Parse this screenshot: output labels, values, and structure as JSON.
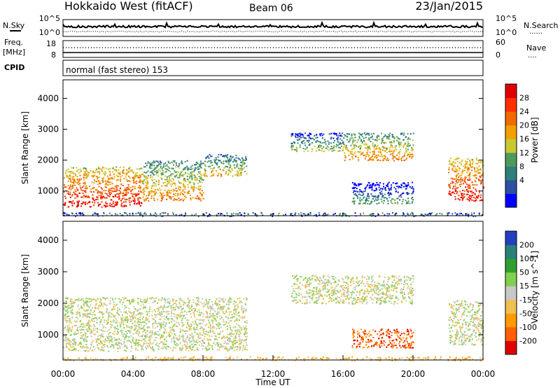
{
  "header": {
    "title": "Hokkaido West (fitACF)",
    "beam": "Beam 06",
    "date": "23/Jan/2015"
  },
  "noise_panel": {
    "left_label": "N.Sky",
    "right_label": "N.Search",
    "ticks_left": [
      "10^5",
      "10^0"
    ],
    "ticks_right": [
      "10^5",
      "10^0"
    ],
    "dotted_legend": "......"
  },
  "freq_panel": {
    "label_line1": "Freq.",
    "label_line2": "[MHz]",
    "ticks_left": [
      "18",
      "8"
    ],
    "right_label": "Nave",
    "ticks_right": [
      "60",
      "0"
    ],
    "dotted_legend": "...."
  },
  "cpid_panel": {
    "label": "CPID",
    "mode_text": "normal (fast stereo) 153"
  },
  "chart_data": [
    {
      "type": "heatmap",
      "name": "power",
      "ylabel": "Slant Range [km]",
      "ylim": [
        200,
        4600
      ],
      "yticks": [
        "4000",
        "3000",
        "2000",
        "1000"
      ],
      "xlim_hours": [
        0,
        24
      ],
      "colorbar": {
        "label": "Power [dB]",
        "ticks": [
          "28",
          "24",
          "20",
          "16",
          "12",
          "8",
          "4"
        ],
        "colors": [
          "#0000ff",
          "#2d50a0",
          "#2f7f7a",
          "#4f9a5a",
          "#c8c832",
          "#f0a000",
          "#f06a00",
          "#ff3000",
          "#e00000"
        ]
      },
      "regions": [
        {
          "t0": 0.0,
          "t1": 4.5,
          "r0": 500,
          "r1": 1800,
          "level": 7
        },
        {
          "t0": 4.5,
          "t1": 8.0,
          "r0": 700,
          "r1": 2000,
          "level": 5
        },
        {
          "t0": 8.0,
          "t1": 10.5,
          "r0": 1500,
          "r1": 2200,
          "level": 4
        },
        {
          "t0": 13.0,
          "t1": 16.0,
          "r0": 2300,
          "r1": 2900,
          "level": 3
        },
        {
          "t0": 16.0,
          "t1": 20.0,
          "r0": 2000,
          "r1": 2900,
          "level": 5
        },
        {
          "t0": 16.5,
          "t1": 20.0,
          "r0": 600,
          "r1": 1300,
          "level": 2
        },
        {
          "t0": 22.0,
          "t1": 24.0,
          "r0": 700,
          "r1": 2100,
          "level": 7
        }
      ]
    },
    {
      "type": "heatmap",
      "name": "velocity",
      "ylabel": "Slant Range [km]",
      "ylim": [
        200,
        4600
      ],
      "yticks": [
        "4000",
        "3000",
        "2000",
        "1000"
      ],
      "xlim_hours": [
        0,
        24
      ],
      "xticks": [
        "00:00",
        "04:00",
        "08:00",
        "12:00",
        "16:00",
        "20:00",
        "00:00"
      ],
      "xlabel": "Time UT",
      "colorbar": {
        "label": "Velocity [m s^-1]",
        "ticks": [
          "200",
          "100",
          "50",
          "15",
          "-15",
          "-50",
          "-100",
          "-200"
        ],
        "colors": [
          "#e00000",
          "#ff6000",
          "#ff9a00",
          "#f0c050",
          "#c8c8c8",
          "#80d050",
          "#30a030",
          "#2d7f7a",
          "#2040c0"
        ]
      },
      "regions": [
        {
          "t0": 0.0,
          "t1": 10.5,
          "r0": 500,
          "r1": 2200,
          "level": 4
        },
        {
          "t0": 13.0,
          "t1": 20.0,
          "r0": 2000,
          "r1": 2900,
          "level": 4
        },
        {
          "t0": 16.5,
          "t1": 20.0,
          "r0": 600,
          "r1": 1200,
          "level": 1
        },
        {
          "t0": 22.0,
          "t1": 24.0,
          "r0": 700,
          "r1": 2100,
          "level": 4
        }
      ]
    }
  ]
}
